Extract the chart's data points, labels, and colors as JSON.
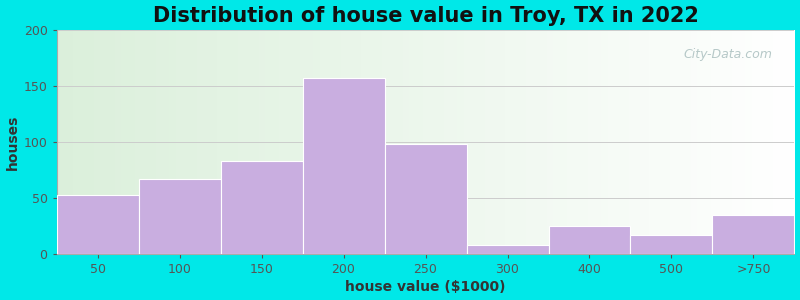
{
  "title": "Distribution of house value in Troy, TX in 2022",
  "xlabel": "house value ($1000)",
  "ylabel": "houses",
  "categories": [
    "50",
    "100",
    "150",
    "200",
    "250",
    "300",
    "400",
    "500",
    ">750"
  ],
  "values": [
    53,
    67,
    83,
    157,
    98,
    8,
    25,
    17,
    35
  ],
  "bar_color": "#c9aee0",
  "bar_edgecolor": "#ffffff",
  "background_outer": "#00e8e8",
  "ylim": [
    0,
    200
  ],
  "yticks": [
    0,
    50,
    100,
    150,
    200
  ],
  "title_fontsize": 15,
  "axis_label_fontsize": 10,
  "tick_fontsize": 9,
  "watermark_text": "City-Data.com",
  "watermark_color": "#aabfbf",
  "grid_color": "#cccccc"
}
